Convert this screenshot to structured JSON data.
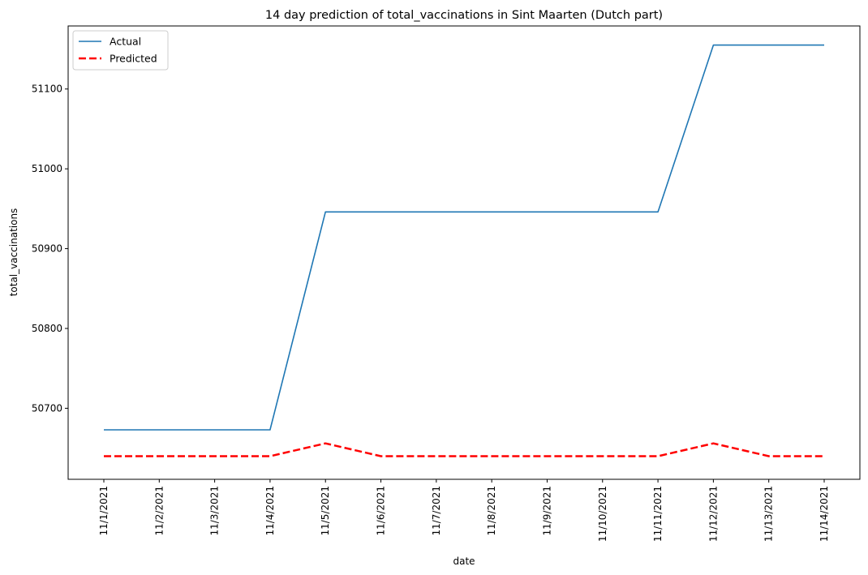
{
  "chart_data": {
    "type": "line",
    "title": "14 day prediction of total_vaccinations in Sint Maarten (Dutch part)",
    "xlabel": "date",
    "ylabel": "total_vaccinations",
    "categories": [
      "11/1/2021",
      "11/2/2021",
      "11/3/2021",
      "11/4/2021",
      "11/5/2021",
      "11/6/2021",
      "11/7/2021",
      "11/8/2021",
      "11/9/2021",
      "11/10/2021",
      "11/11/2021",
      "11/12/2021",
      "11/13/2021",
      "11/14/2021"
    ],
    "yticks": [
      50700,
      50800,
      50900,
      51000,
      51100
    ],
    "ylim": [
      50611,
      51179
    ],
    "legend_position": "top-left",
    "grid": false,
    "series": [
      {
        "name": "Actual",
        "color": "#1f77b4",
        "style": "solid",
        "values": [
          50673,
          50673,
          50673,
          50673,
          50946,
          50946,
          50946,
          50946,
          50946,
          50946,
          50946,
          51155,
          51155,
          51155
        ]
      },
      {
        "name": "Predicted",
        "color": "#ff0000",
        "style": "dashed",
        "values": [
          50640,
          50640,
          50640,
          50640,
          50656,
          50640,
          50640,
          50640,
          50640,
          50640,
          50640,
          50656,
          50640,
          50640
        ]
      }
    ]
  }
}
